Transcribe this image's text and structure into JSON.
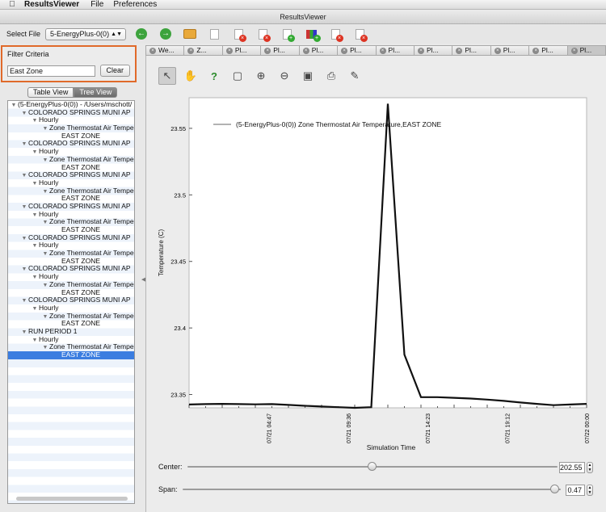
{
  "menubar": {
    "app": "ResultsViewer",
    "items": [
      "File",
      "Preferences"
    ]
  },
  "window": {
    "title": "ResultsViewer"
  },
  "toolbar": {
    "select_label": "Select File",
    "selected_file": "5-EnergyPlus-0(0)"
  },
  "filter": {
    "title": "Filter Criteria",
    "value": "East Zone",
    "clear_label": "Clear"
  },
  "view_toggle": {
    "table": "Table View",
    "tree": "Tree View",
    "active": "tree"
  },
  "tree": {
    "rows": [
      {
        "level": 0,
        "text": "(5-EnergyPlus-0(0)) - /Users/mschott/"
      },
      {
        "level": 1,
        "text": "COLORADO SPRINGS MUNI AP"
      },
      {
        "level": 2,
        "text": "Hourly"
      },
      {
        "level": 3,
        "text": "Zone Thermostat Air Tempe"
      },
      {
        "level": 4,
        "text": "EAST ZONE"
      },
      {
        "level": 1,
        "text": "COLORADO SPRINGS MUNI AP"
      },
      {
        "level": 2,
        "text": "Hourly"
      },
      {
        "level": 3,
        "text": "Zone Thermostat Air Tempe"
      },
      {
        "level": 4,
        "text": "EAST ZONE"
      },
      {
        "level": 1,
        "text": "COLORADO SPRINGS MUNI AP"
      },
      {
        "level": 2,
        "text": "Hourly"
      },
      {
        "level": 3,
        "text": "Zone Thermostat Air Tempe"
      },
      {
        "level": 4,
        "text": "EAST ZONE"
      },
      {
        "level": 1,
        "text": "COLORADO SPRINGS MUNI AP"
      },
      {
        "level": 2,
        "text": "Hourly"
      },
      {
        "level": 3,
        "text": "Zone Thermostat Air Tempe"
      },
      {
        "level": 4,
        "text": "EAST ZONE"
      },
      {
        "level": 1,
        "text": "COLORADO SPRINGS MUNI AP"
      },
      {
        "level": 2,
        "text": "Hourly"
      },
      {
        "level": 3,
        "text": "Zone Thermostat Air Tempe"
      },
      {
        "level": 4,
        "text": "EAST ZONE"
      },
      {
        "level": 1,
        "text": "COLORADO SPRINGS MUNI AP"
      },
      {
        "level": 2,
        "text": "Hourly"
      },
      {
        "level": 3,
        "text": "Zone Thermostat Air Tempe"
      },
      {
        "level": 4,
        "text": "EAST ZONE"
      },
      {
        "level": 1,
        "text": "COLORADO SPRINGS MUNI AP"
      },
      {
        "level": 2,
        "text": "Hourly"
      },
      {
        "level": 3,
        "text": "Zone Thermostat Air Tempe"
      },
      {
        "level": 4,
        "text": "EAST ZONE"
      },
      {
        "level": 1,
        "text": "RUN PERIOD 1"
      },
      {
        "level": 2,
        "text": "Hourly"
      },
      {
        "level": 3,
        "text": "Zone Thermostat Air Tempe"
      },
      {
        "level": 4,
        "text": "EAST ZONE",
        "selected": true
      }
    ]
  },
  "tabs": [
    {
      "label": "We..."
    },
    {
      "label": "Z..."
    },
    {
      "label": "Pl..."
    },
    {
      "label": "Pl..."
    },
    {
      "label": "Pl..."
    },
    {
      "label": "Pl..."
    },
    {
      "label": "Pl..."
    },
    {
      "label": "Pl..."
    },
    {
      "label": "Pl..."
    },
    {
      "label": "Pl..."
    },
    {
      "label": "Pl..."
    },
    {
      "label": "Pl...",
      "active": true
    }
  ],
  "plot_tools": [
    "select-arrow-icon",
    "pan-hand-icon",
    "help-query-icon",
    "zoom-box-icon",
    "zoom-in-icon",
    "zoom-out-icon",
    "save-image-icon",
    "print-icon",
    "annotate-pencil-icon"
  ],
  "chart_data": {
    "type": "line",
    "legend_entry": "(5-EnergyPlus-0(0)) Zone Thermostat Air Temperature,EAST ZONE",
    "legend_position": "top-left",
    "xlabel": "Simulation Time",
    "ylabel": "Temperature (C)",
    "x_tick_labels": [
      "07/21 04:47",
      "07/21 09:36",
      "07/21 14:23",
      "07/21 19:12",
      "07/22 00:00"
    ],
    "y_tick_labels": [
      "23.55",
      "23.5",
      "23.45",
      "23.4",
      "23.35"
    ],
    "y_ticks": [
      23.55,
      23.5,
      23.45,
      23.4,
      23.35
    ],
    "xlim_hours": [
      0,
      24
    ],
    "ylim": [
      23.34,
      23.573
    ],
    "x_hours": [
      0,
      1,
      2,
      3,
      4,
      5,
      6,
      7,
      8,
      9,
      10,
      11,
      12,
      13,
      14,
      15,
      16,
      17,
      18,
      19,
      20,
      21,
      22,
      23,
      24
    ],
    "values": [
      23.3425,
      23.3428,
      23.343,
      23.3428,
      23.3426,
      23.3428,
      23.3422,
      23.3415,
      23.341,
      23.3405,
      23.34,
      23.3405,
      23.5685,
      23.38,
      23.348,
      23.348,
      23.3475,
      23.347,
      23.3462,
      23.3452,
      23.344,
      23.343,
      23.342,
      23.3425,
      23.343
    ],
    "grid": false
  },
  "sliders": {
    "center": {
      "label": "Center:",
      "value": "202.55",
      "position": 0.5
    },
    "span": {
      "label": "Span:",
      "value": "0.47",
      "position": 0.985
    }
  }
}
